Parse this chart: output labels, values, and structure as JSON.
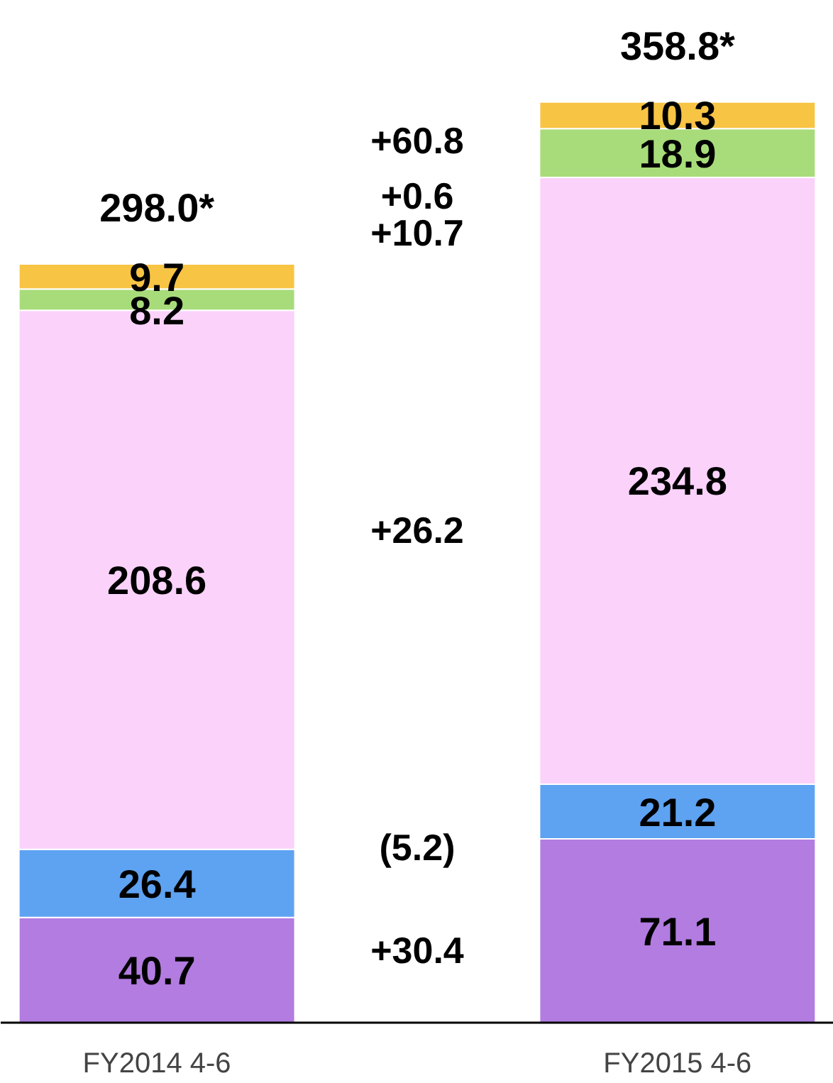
{
  "chart_data": {
    "type": "bar",
    "stacked": true,
    "categories": [
      "FY2014 4-6",
      "FY2015 4-6"
    ],
    "series": [
      {
        "color": "#b27ce0",
        "values": [
          40.7,
          71.1
        ]
      },
      {
        "color": "#5ea2f2",
        "values": [
          26.4,
          21.2
        ]
      },
      {
        "color": "#fad2fa",
        "values": [
          208.6,
          234.8
        ]
      },
      {
        "color": "#a8dc7a",
        "values": [
          8.2,
          18.9
        ]
      },
      {
        "color": "#f8c444",
        "values": [
          9.7,
          10.3
        ]
      }
    ],
    "data_labels": true,
    "annotations": [
      "298.0*",
      "358.8*",
      "+60.8",
      "+0.6",
      "+10.7",
      "+26.2",
      "(5.2)",
      "+30.4"
    ]
  }
}
